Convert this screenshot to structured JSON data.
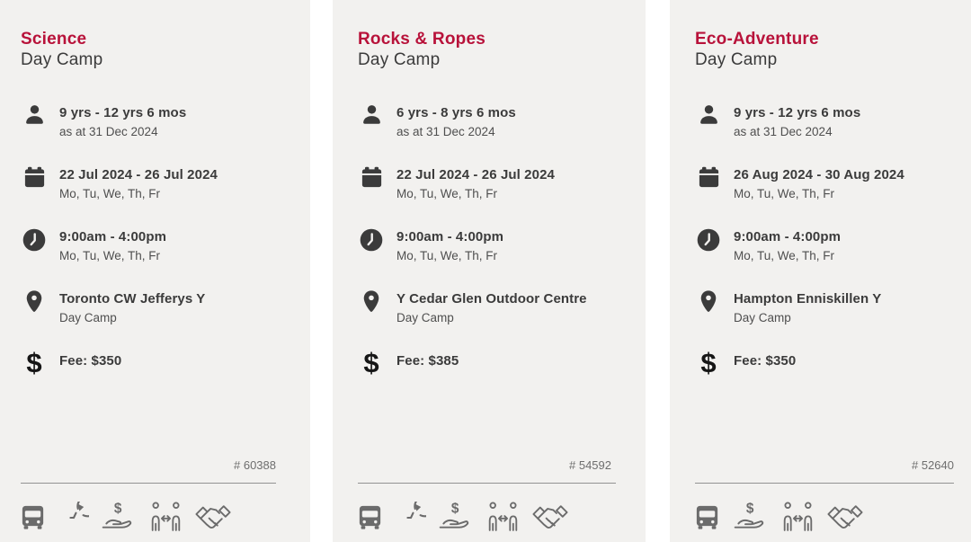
{
  "page": {
    "background_color": "#ffffff",
    "card_background_color": "#f2f1ef",
    "accent_color": "#b8123a"
  },
  "cards": [
    {
      "title": "Science",
      "subtitle": "Day Camp",
      "details": [
        {
          "icon": "person-icon",
          "primary": "9 yrs - 12 yrs 6 mos",
          "secondary": "as at 31 Dec 2024"
        },
        {
          "icon": "calendar-icon",
          "primary": "22 Jul 2024 - 26 Jul 2024",
          "secondary": "Mo, Tu, We, Th, Fr"
        },
        {
          "icon": "clock-icon",
          "primary": "9:00am - 4:00pm",
          "secondary": "Mo, Tu, We, Th, Fr"
        },
        {
          "icon": "location-pin-icon",
          "primary": "Toronto CW Jefferys Y",
          "secondary": "Day Camp"
        },
        {
          "icon": "dollar-sign-icon",
          "primary": "Fee: $350",
          "secondary": ""
        }
      ],
      "program_number": "# 60388",
      "feature_icons": [
        "bus-icon",
        "clock-refresh-icon",
        "hand-dollar-icon",
        "people-exchange-icon",
        "handshake-icon"
      ]
    },
    {
      "title": "Rocks & Ropes",
      "subtitle": "Day Camp",
      "details": [
        {
          "icon": "person-icon",
          "primary": "6 yrs - 8 yrs 6 mos",
          "secondary": "as at 31 Dec 2024"
        },
        {
          "icon": "calendar-icon",
          "primary": "22 Jul 2024 - 26 Jul 2024",
          "secondary": "Mo, Tu, We, Th, Fr"
        },
        {
          "icon": "clock-icon",
          "primary": "9:00am - 4:00pm",
          "secondary": "Mo, Tu, We, Th, Fr"
        },
        {
          "icon": "location-pin-icon",
          "primary": "Y Cedar Glen Outdoor Centre",
          "secondary": "Day Camp"
        },
        {
          "icon": "dollar-sign-icon",
          "primary": "Fee: $385",
          "secondary": ""
        }
      ],
      "program_number": "# 54592",
      "feature_icons": [
        "bus-icon",
        "clock-refresh-icon",
        "hand-dollar-icon",
        "people-exchange-icon",
        "handshake-icon"
      ]
    },
    {
      "title": "Eco-Adventure",
      "subtitle": "Day Camp",
      "details": [
        {
          "icon": "person-icon",
          "primary": "9 yrs - 12 yrs 6 mos",
          "secondary": "as at 31 Dec 2024"
        },
        {
          "icon": "calendar-icon",
          "primary": "26 Aug 2024 - 30 Aug 2024",
          "secondary": "Mo, Tu, We, Th, Fr"
        },
        {
          "icon": "clock-icon",
          "primary": "9:00am - 4:00pm",
          "secondary": "Mo, Tu, We, Th, Fr"
        },
        {
          "icon": "location-pin-icon",
          "primary": "Hampton Enniskillen Y",
          "secondary": "Day Camp"
        },
        {
          "icon": "dollar-sign-icon",
          "primary": "Fee: $350",
          "secondary": ""
        }
      ],
      "program_number": "# 52640",
      "feature_icons": [
        "bus-icon",
        "hand-dollar-icon",
        "people-exchange-icon",
        "handshake-icon"
      ]
    }
  ]
}
